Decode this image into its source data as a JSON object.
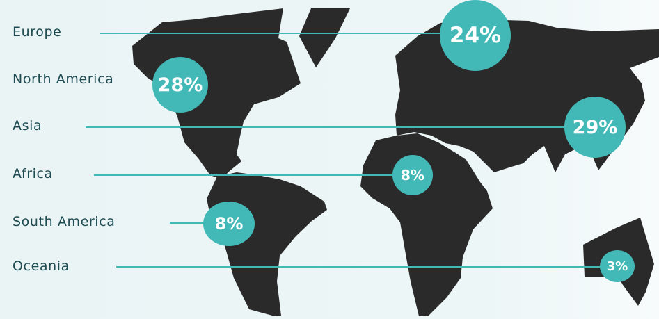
{
  "colors": {
    "accent": "#43b9b7",
    "map": "#2b2a2a",
    "label": "#1d4b52",
    "background": "#eaf4f5"
  },
  "regions": [
    {
      "name": "Europe",
      "share": "24%"
    },
    {
      "name": "North America",
      "share": "28%"
    },
    {
      "name": "Asia",
      "share": "29%"
    },
    {
      "name": "Africa",
      "share": "8%"
    },
    {
      "name": "South America",
      "share": "8%"
    },
    {
      "name": "Oceania",
      "share": "3%"
    }
  ]
}
